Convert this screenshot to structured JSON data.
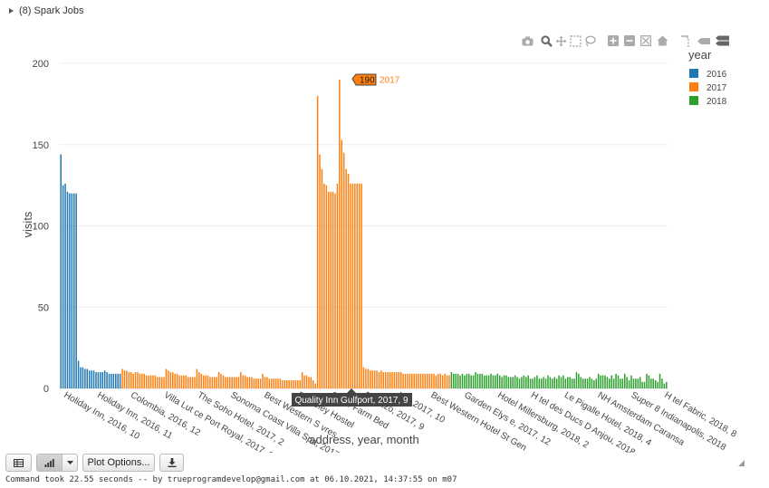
{
  "cell": {
    "jobs_label": "(8) Spark Jobs"
  },
  "toolbar": {
    "plot_options_label": "Plot Options...",
    "status_text": "Command took 22.55 seconds -- by trueprogramdevelop@gmail.com at 06.10.2021, 14:37:55 on m07"
  },
  "modebar_icons": [
    "camera-icon",
    "zoom-icon",
    "pan-icon",
    "box-select-icon",
    "lasso-icon",
    "zoom-in-icon",
    "zoom-out-icon",
    "autoscale-icon",
    "reset-axes-icon",
    "spike-lines-icon",
    "hover-closest-icon",
    "hover-compare-icon"
  ],
  "chart_data": {
    "type": "bar",
    "xlabel": "address, year, month",
    "ylabel": "visits",
    "ylim": [
      0,
      200
    ],
    "yticks": [
      0,
      50,
      100,
      150,
      200
    ],
    "grid": true,
    "legend_title": "year",
    "legend_position": "top-right",
    "series": [
      {
        "name": "2016",
        "color": "#1f77b4",
        "values": [
          144,
          125,
          126,
          121,
          120,
          120,
          120,
          120,
          17,
          13,
          13,
          12,
          12,
          11,
          11,
          11,
          10,
          10,
          10,
          10,
          11,
          10,
          9,
          9,
          9,
          9,
          9,
          9
        ]
      },
      {
        "name": "2017",
        "color": "#ff7f0e",
        "values": [
          12,
          11,
          11,
          10,
          10,
          9,
          10,
          10,
          9,
          9,
          9,
          8,
          8,
          8,
          8,
          8,
          7,
          7,
          7,
          7,
          12,
          11,
          10,
          10,
          9,
          9,
          8,
          8,
          8,
          8,
          7,
          7,
          7,
          7,
          12,
          10,
          9,
          8,
          8,
          8,
          7,
          7,
          7,
          7,
          10,
          9,
          8,
          7,
          7,
          7,
          7,
          7,
          7,
          7,
          10,
          8,
          8,
          7,
          7,
          7,
          6,
          6,
          6,
          6,
          9,
          7,
          7,
          6,
          6,
          6,
          6,
          6,
          6,
          5,
          5,
          5,
          5,
          5,
          5,
          5,
          5,
          5,
          10,
          8,
          8,
          7,
          7,
          5,
          3,
          180,
          144,
          135,
          126,
          125,
          121,
          121,
          121,
          120,
          126,
          190,
          153,
          145,
          135,
          132,
          126,
          126,
          126,
          126,
          126,
          126,
          13,
          12,
          12,
          11,
          11,
          11,
          11,
          10,
          11,
          10,
          10,
          10,
          10,
          10,
          10,
          10,
          10,
          10,
          9,
          9,
          9,
          9,
          9,
          9,
          9,
          9,
          9,
          9,
          9,
          9,
          9,
          9,
          9,
          8,
          9,
          9,
          8,
          9,
          8,
          8
        ]
      },
      {
        "name": "2018",
        "color": "#2ca02c",
        "values": [
          10,
          9,
          9,
          9,
          8,
          9,
          8,
          9,
          9,
          8,
          8,
          10,
          9,
          9,
          9,
          8,
          8,
          8,
          9,
          8,
          8,
          9,
          8,
          7,
          8,
          8,
          7,
          7,
          7,
          8,
          7,
          6,
          7,
          8,
          7,
          8,
          6,
          6,
          7,
          8,
          6,
          6,
          7,
          6,
          8,
          7,
          6,
          7,
          6,
          8,
          7,
          8,
          6,
          7,
          7,
          6,
          6,
          10,
          9,
          7,
          6,
          6,
          6,
          7,
          6,
          5,
          6,
          9,
          8,
          8,
          8,
          7,
          6,
          8,
          6,
          9,
          8,
          6,
          6,
          9,
          7,
          5,
          8,
          6,
          6,
          6,
          7,
          4,
          4,
          9,
          8,
          6,
          6,
          5,
          4,
          9,
          6,
          3,
          4
        ]
      }
    ],
    "tick_labels": [
      "Holiday Inn, 2016, 10",
      "Holiday Inn, 2016, 11",
      "Colombia, 2016, 12",
      "Villa Lut ce Port Royal, 2017, 1",
      "The Soho Hotel, 2017, 2",
      "Sonoma Coast Villa Spa, 2017, 3",
      "Best Western S vres",
      "Berkeley Hostel",
      "Snow Farm Bed",
      "Palazzo, 2017, 9",
      "Inn, 2017, 10",
      "Best Western Hotel St Gen",
      "Garden Elys e, 2017, 12",
      "Hotel Millersburg, 2018, 2",
      "H tel des Ducs D Anjou, 2018",
      "Le Pigalle Hotel, 2018, 4",
      "NH Amsterdam Caransa",
      "Super 8 Indianapolis, 2018",
      "H tel Fabric, 2018, 8"
    ],
    "annotations": {
      "peak_value": "190",
      "peak_series": "2017",
      "hover_label": "Quality Inn Gulfport, 2017, 9"
    }
  }
}
